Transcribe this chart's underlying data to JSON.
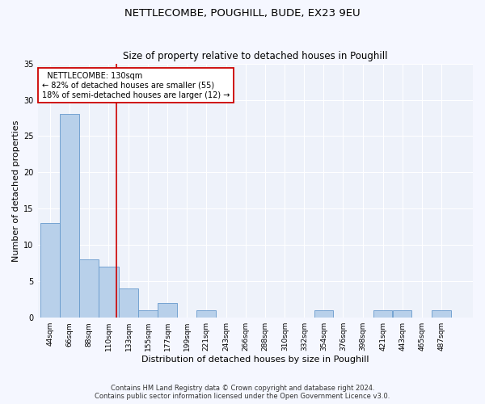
{
  "title1": "NETTLECOMBE, POUGHILL, BUDE, EX23 9EU",
  "title2": "Size of property relative to detached houses in Poughill",
  "xlabel": "Distribution of detached houses by size in Poughill",
  "ylabel": "Number of detached properties",
  "bin_labels": [
    "44sqm",
    "66sqm",
    "88sqm",
    "110sqm",
    "133sqm",
    "155sqm",
    "177sqm",
    "199sqm",
    "221sqm",
    "243sqm",
    "266sqm",
    "288sqm",
    "310sqm",
    "332sqm",
    "354sqm",
    "376sqm",
    "398sqm",
    "421sqm",
    "443sqm",
    "465sqm",
    "487sqm"
  ],
  "bin_edges": [
    44,
    66,
    88,
    110,
    133,
    155,
    177,
    199,
    221,
    243,
    266,
    288,
    310,
    332,
    354,
    376,
    398,
    421,
    443,
    465,
    487,
    509
  ],
  "bar_values": [
    13,
    28,
    8,
    7,
    4,
    1,
    2,
    0,
    1,
    0,
    0,
    0,
    0,
    0,
    1,
    0,
    0,
    1,
    1,
    0,
    1
  ],
  "bar_color": "#b8d0ea",
  "bar_edge_color": "#6699cc",
  "vline_x": 130,
  "vline_color": "#cc0000",
  "annotation_text": "  NETTLECOMBE: 130sqm\n← 82% of detached houses are smaller (55)\n18% of semi-detached houses are larger (12) →",
  "annotation_box_color": "#cc0000",
  "ylim": [
    0,
    35
  ],
  "yticks": [
    0,
    5,
    10,
    15,
    20,
    25,
    30,
    35
  ],
  "footer_text": "Contains HM Land Registry data © Crown copyright and database right 2024.\nContains public sector information licensed under the Open Government Licence v3.0.",
  "bg_color": "#eef2fa",
  "grid_color": "#ffffff",
  "title1_fontsize": 9.5,
  "title2_fontsize": 8.5,
  "xlabel_fontsize": 8,
  "ylabel_fontsize": 8,
  "tick_fontsize": 6.5,
  "footer_fontsize": 6,
  "annotation_fontsize": 7
}
